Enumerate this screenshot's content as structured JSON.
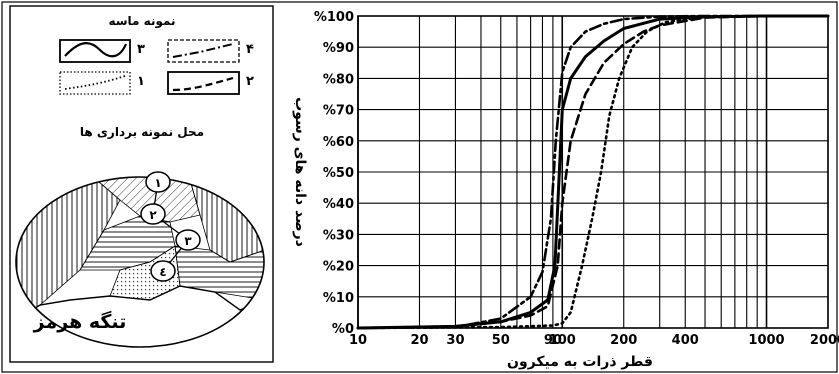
{
  "legend": {
    "title": "نمونه ماسه",
    "items": [
      {
        "num": "۳",
        "style": "solid"
      },
      {
        "num": "۴",
        "style": "dashdot"
      },
      {
        "num": "۱",
        "style": "dotted"
      },
      {
        "num": "۲",
        "style": "dashed"
      }
    ]
  },
  "map": {
    "title": "محل نمونه برداری ها",
    "place": "تنگه هرمز",
    "sites": [
      "۱",
      "۲",
      "۳",
      "٤"
    ]
  },
  "chart_data": {
    "type": "line",
    "xlabel": "قطر ذرات به میکرون",
    "ylabel": "درصد دانه های رسوب",
    "x_scale": "log",
    "xlim": [
      10,
      2000
    ],
    "ylim": [
      0,
      100
    ],
    "x_ticks": [
      {
        "v": 10,
        "label": "10"
      },
      {
        "v": 20,
        "label": "20"
      },
      {
        "v": 30,
        "label": "30"
      },
      {
        "v": 50,
        "label": "50"
      },
      {
        "v": 90,
        "label": "90"
      },
      {
        "v": 100,
        "label": "100"
      },
      {
        "v": 200,
        "label": "200"
      },
      {
        "v": 400,
        "label": "400"
      },
      {
        "v": 1000,
        "label": "1000"
      },
      {
        "v": 2000,
        "label": "2000"
      }
    ],
    "y_ticks": [
      {
        "v": 0,
        "label": "%0"
      },
      {
        "v": 10,
        "label": "%10"
      },
      {
        "v": 20,
        "label": "%20"
      },
      {
        "v": 30,
        "label": "%30"
      },
      {
        "v": 40,
        "label": "%40"
      },
      {
        "v": 50,
        "label": "%50"
      },
      {
        "v": 60,
        "label": "%60"
      },
      {
        "v": 70,
        "label": "%70"
      },
      {
        "v": 80,
        "label": "%80"
      },
      {
        "v": 90,
        "label": "%90"
      },
      {
        "v": 100,
        "label": "%100"
      }
    ],
    "grid": true,
    "series": [
      {
        "key": "s3",
        "style": "solid",
        "x": [
          10,
          30,
          50,
          70,
          85,
          92,
          96,
          100,
          110,
          130,
          160,
          200,
          300,
          500,
          1000,
          2000
        ],
        "y": [
          0,
          0.5,
          2,
          5,
          9,
          20,
          45,
          70,
          80,
          87,
          92,
          96,
          99,
          99.7,
          100,
          100
        ]
      },
      {
        "key": "s4",
        "style": "dashdot",
        "x": [
          10,
          30,
          50,
          70,
          80,
          88,
          93,
          100,
          110,
          130,
          160,
          200,
          300,
          500,
          1000,
          2000
        ],
        "y": [
          0,
          0.3,
          3,
          10,
          18,
          35,
          60,
          82,
          90,
          95,
          97.5,
          99,
          99.8,
          100,
          100,
          100
        ]
      },
      {
        "key": "s2",
        "style": "dashed",
        "x": [
          10,
          30,
          50,
          70,
          85,
          95,
          100,
          110,
          130,
          160,
          200,
          250,
          300,
          500,
          1000,
          2000
        ],
        "y": [
          0,
          0.5,
          2,
          4,
          7,
          20,
          40,
          60,
          75,
          85,
          91,
          95,
          97,
          99.5,
          100,
          100
        ]
      },
      {
        "key": "s1",
        "style": "dotted",
        "x": [
          10,
          50,
          90,
          100,
          110,
          125,
          140,
          155,
          170,
          190,
          220,
          260,
          320,
          500,
          1000,
          2000
        ],
        "y": [
          0,
          0.3,
          0.8,
          1.5,
          5,
          20,
          35,
          50,
          68,
          80,
          90,
          95,
          98,
          99.7,
          100,
          100
        ]
      }
    ]
  }
}
